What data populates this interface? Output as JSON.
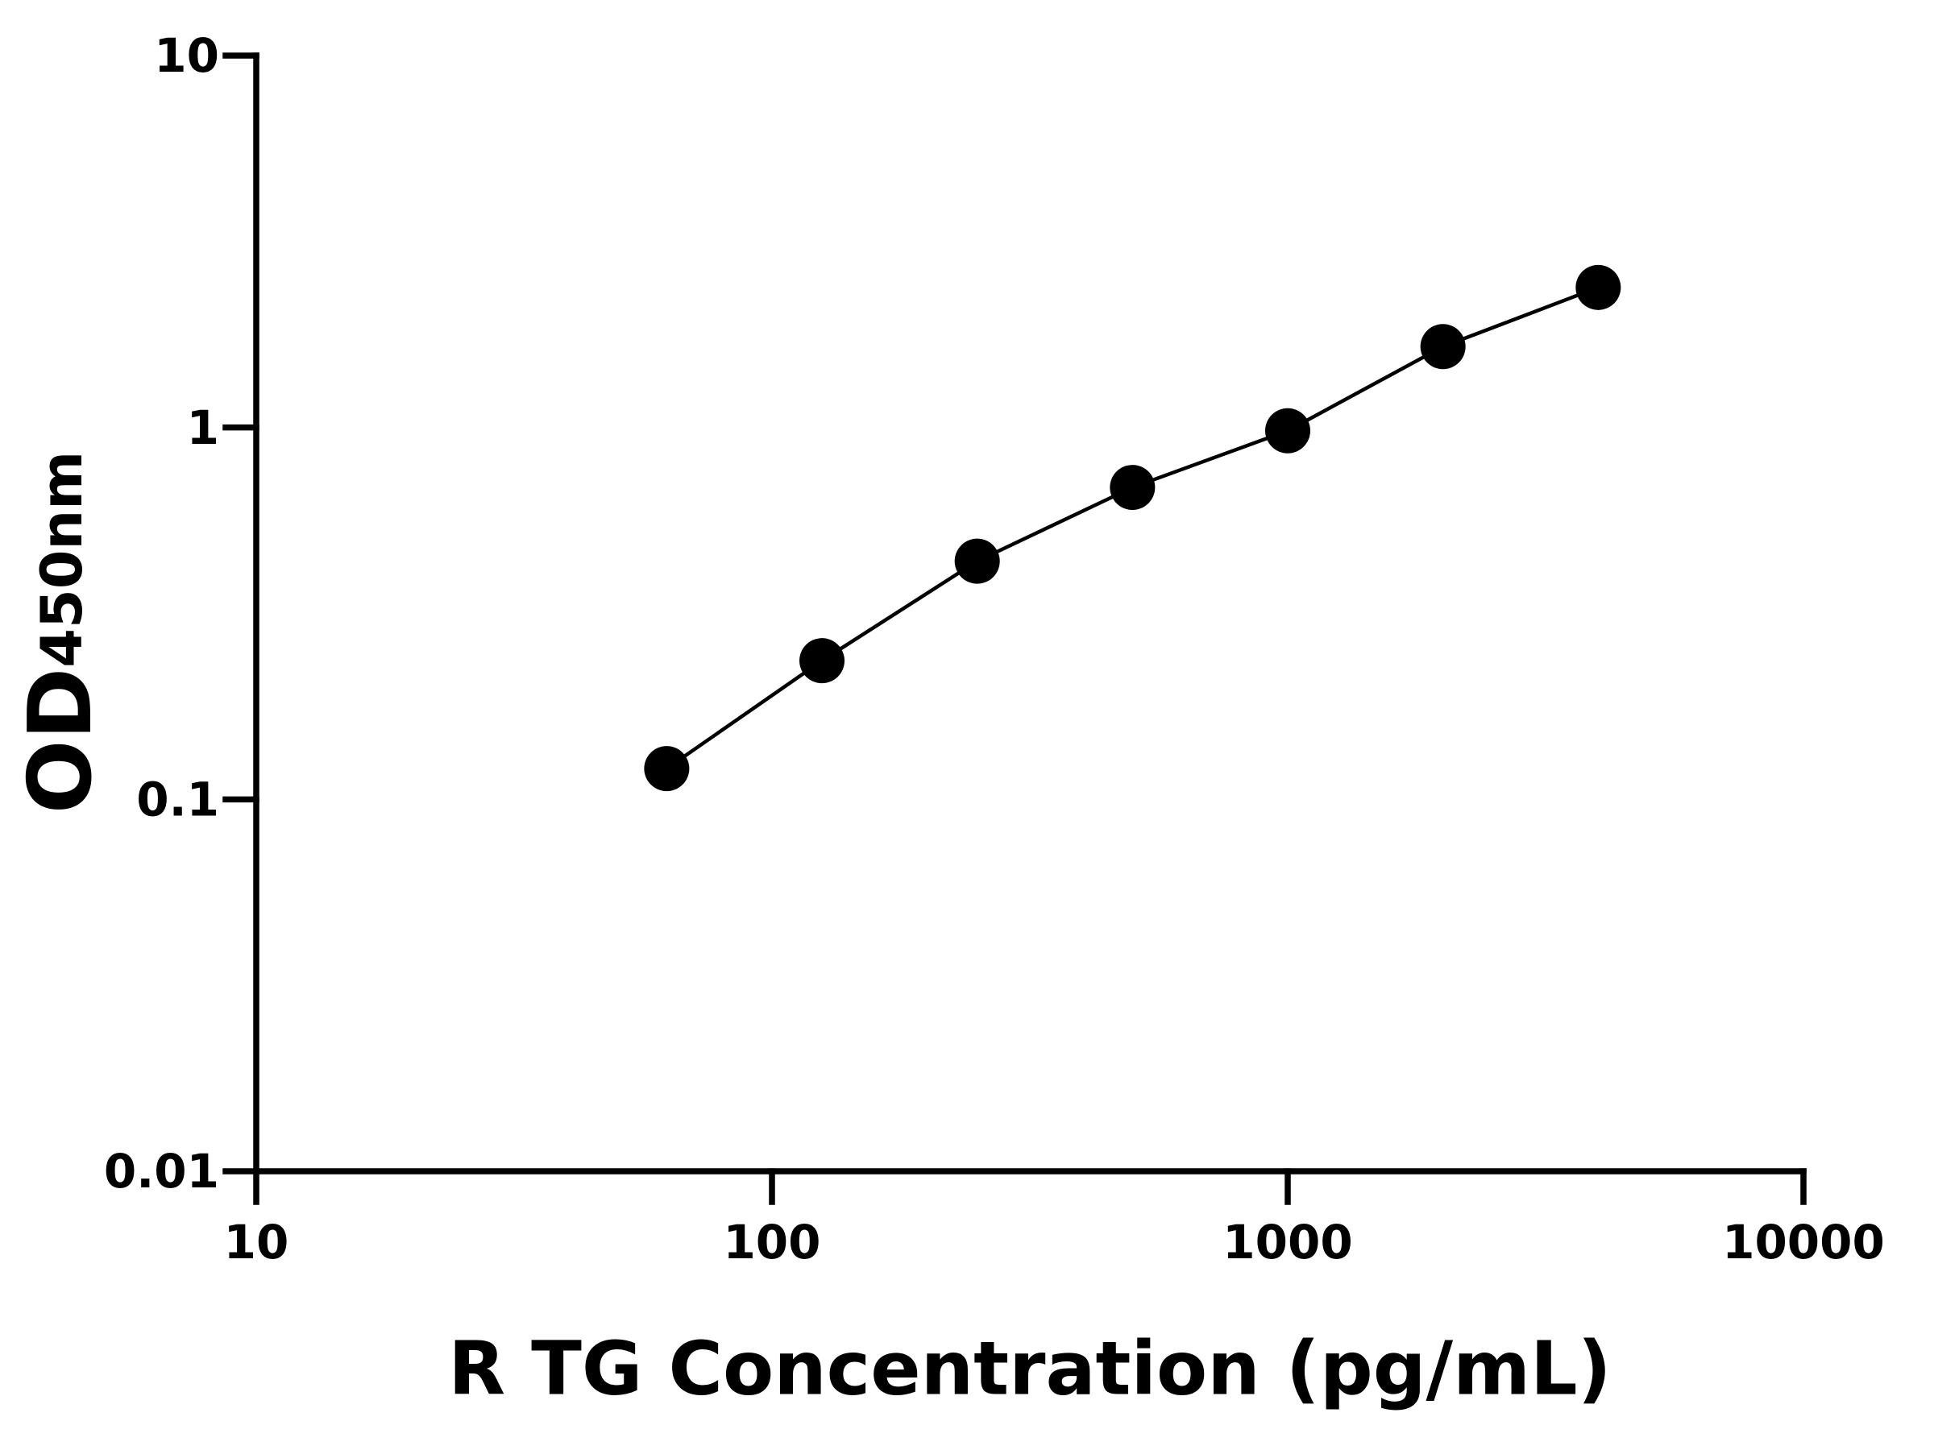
{
  "chart_data": {
    "type": "scatter",
    "xlabel": "R TG Concentration (pg/mL)",
    "ylabel": "OD",
    "ylabel_subscript": "450nm",
    "x": [
      62.5,
      125,
      250,
      500,
      1000,
      2000,
      4000
    ],
    "series": [
      {
        "color": "#000000",
        "values": [
          0.121,
          0.236,
          0.437,
          0.69,
          0.98,
          1.65,
          2.38
        ]
      }
    ],
    "xscale": "log",
    "yscale": "log",
    "xlim": [
      10,
      10000
    ],
    "xticks": [
      10,
      100,
      1000,
      10000
    ],
    "ylim": [
      0.01,
      10
    ],
    "yticks": [
      0.01,
      0.1,
      1,
      10
    ],
    "grid": false
  }
}
